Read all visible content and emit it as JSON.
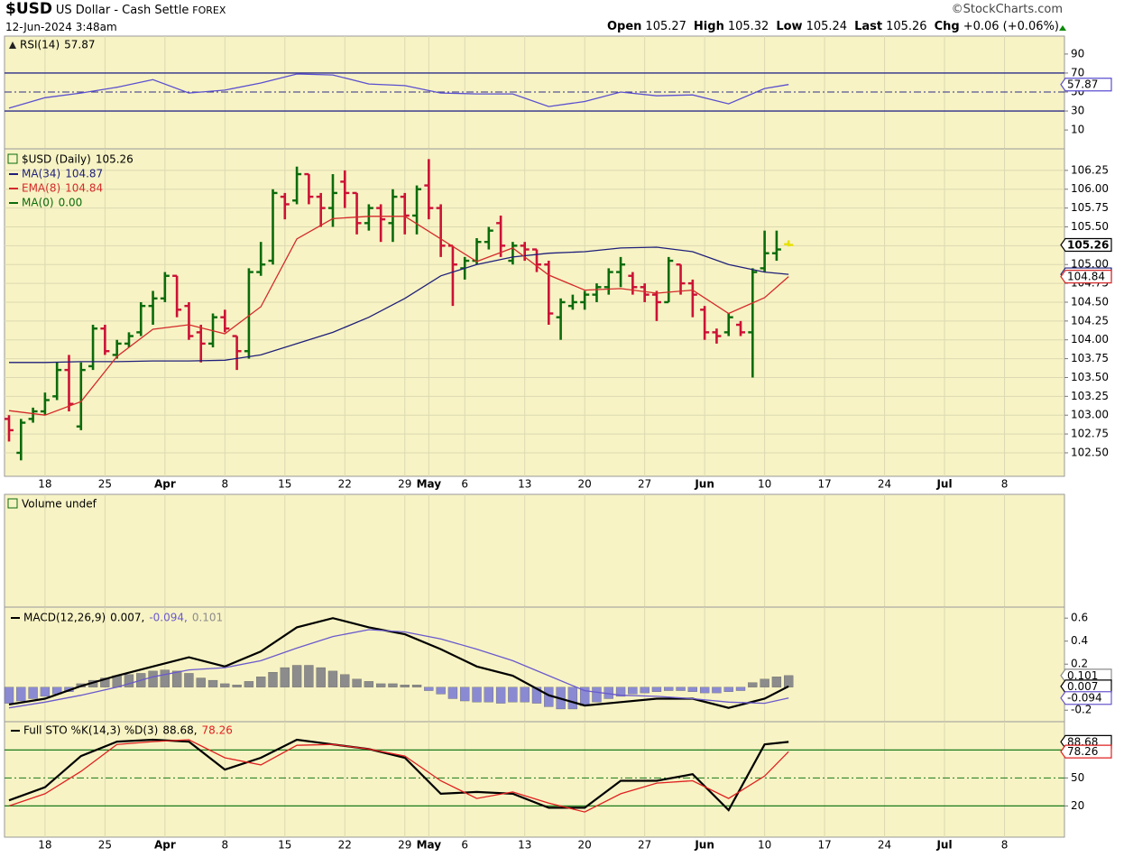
{
  "header": {
    "symbol": "$USD",
    "name": "US Dollar - Cash Settle",
    "exchange": "FOREX",
    "datetime": "12-Jun-2024 3:48am",
    "source": "©StockCharts.com",
    "quote": [
      {
        "label": "Open",
        "value": "105.27"
      },
      {
        "label": "High",
        "value": "105.32"
      },
      {
        "label": "Low",
        "value": "105.24"
      },
      {
        "label": "Last",
        "value": "105.26"
      },
      {
        "label": "Chg",
        "value": "+0.06 (+0.06%)"
      }
    ]
  },
  "chart_data": {
    "type": "stock",
    "background": "#f7f3c4",
    "xlim": [
      "2024-03-13",
      "2024-07-15"
    ],
    "xticks": [
      {
        "value": "2024-03-18",
        "label": "18"
      },
      {
        "value": "2024-03-25",
        "label": "25"
      },
      {
        "value": "2024-04-01",
        "label": "Apr"
      },
      {
        "value": "2024-04-08",
        "label": "8"
      },
      {
        "value": "2024-04-15",
        "label": "15"
      },
      {
        "value": "2024-04-22",
        "label": "22"
      },
      {
        "value": "2024-04-29",
        "label": "29"
      },
      {
        "value": "2024-05-01",
        "label": "May"
      },
      {
        "value": "2024-05-06",
        "label": "6"
      },
      {
        "value": "2024-05-13",
        "label": "13"
      },
      {
        "value": "2024-05-20",
        "label": "20"
      },
      {
        "value": "2024-05-27",
        "label": "27"
      },
      {
        "value": "2024-06-03",
        "label": "Jun"
      },
      {
        "value": "2024-06-10",
        "label": "10"
      },
      {
        "value": "2024-06-17",
        "label": "17"
      },
      {
        "value": "2024-06-24",
        "label": "24"
      },
      {
        "value": "2024-07-01",
        "label": "Jul"
      },
      {
        "value": "2024-07-08",
        "label": "8"
      }
    ],
    "x": [
      "2024-03-13",
      "2024-03-14",
      "2024-03-15",
      "2024-03-18",
      "2024-03-19",
      "2024-03-20",
      "2024-03-21",
      "2024-03-22",
      "2024-03-25",
      "2024-03-26",
      "2024-03-27",
      "2024-03-28",
      "2024-03-29",
      "2024-04-01",
      "2024-04-02",
      "2024-04-03",
      "2024-04-04",
      "2024-04-05",
      "2024-04-08",
      "2024-04-09",
      "2024-04-10",
      "2024-04-11",
      "2024-04-12",
      "2024-04-15",
      "2024-04-16",
      "2024-04-17",
      "2024-04-18",
      "2024-04-19",
      "2024-04-22",
      "2024-04-23",
      "2024-04-24",
      "2024-04-25",
      "2024-04-26",
      "2024-04-29",
      "2024-04-30",
      "2024-05-01",
      "2024-05-02",
      "2024-05-03",
      "2024-05-06",
      "2024-05-07",
      "2024-05-08",
      "2024-05-09",
      "2024-05-10",
      "2024-05-13",
      "2024-05-14",
      "2024-05-15",
      "2024-05-16",
      "2024-05-17",
      "2024-05-20",
      "2024-05-21",
      "2024-05-22",
      "2024-05-23",
      "2024-05-24",
      "2024-05-27",
      "2024-05-28",
      "2024-05-29",
      "2024-05-30",
      "2024-05-31",
      "2024-06-03",
      "2024-06-04",
      "2024-06-05",
      "2024-06-06",
      "2024-06-07",
      "2024-06-10",
      "2024-06-11",
      "2024-06-12"
    ],
    "line_x": [
      "2024-03-13",
      "2024-03-18",
      "2024-03-21",
      "2024-03-26",
      "2024-03-29",
      "2024-04-03",
      "2024-04-08",
      "2024-04-11",
      "2024-04-16",
      "2024-04-19",
      "2024-04-24",
      "2024-04-29",
      "2024-05-02",
      "2024-05-07",
      "2024-05-10",
      "2024-05-15",
      "2024-05-20",
      "2024-05-23",
      "2024-05-28",
      "2024-05-31",
      "2024-06-05",
      "2024-06-10",
      "2024-06-12"
    ],
    "rsi": {
      "title": "RSI(14)",
      "label": "57.87",
      "color": "#5a4fd0",
      "ylim": [
        -7,
        107
      ],
      "yticks": [
        10,
        30,
        50,
        70,
        90
      ],
      "bands": [
        30,
        70
      ],
      "midline": 50,
      "band_color": "#2d2d8a",
      "values": [
        33,
        44,
        49,
        55,
        63,
        49,
        52,
        59.5,
        69,
        68,
        58.5,
        56.7,
        49,
        48,
        48,
        34.7,
        40,
        50,
        46,
        47,
        37.6,
        53.7,
        57.87
      ]
    },
    "price": {
      "title": "$USD (Daily)",
      "label": "105.26",
      "ylim": [
        102.2,
        106.5
      ],
      "grid": true,
      "yticks": [
        {
          "value": 102.5,
          "label": "102.50"
        },
        {
          "value": 102.75,
          "label": "102.75"
        },
        {
          "value": 103,
          "label": "103.00"
        },
        {
          "value": 103.25,
          "label": "103.25"
        },
        {
          "value": 103.5,
          "label": "103.50"
        },
        {
          "value": 103.75,
          "label": "103.75"
        },
        {
          "value": 104,
          "label": "104.00"
        },
        {
          "value": 104.25,
          "label": "104.25"
        },
        {
          "value": 104.5,
          "label": "104.50"
        },
        {
          "value": 104.75,
          "label": "104.75"
        },
        {
          "value": 105,
          "label": "105.00"
        },
        {
          "value": 105.25,
          "label": "105.25"
        },
        {
          "value": 105.5,
          "label": "105.50"
        },
        {
          "value": 105.75,
          "label": "105.75"
        },
        {
          "value": 106,
          "label": "106.00"
        },
        {
          "value": 106.25,
          "label": "106.25"
        }
      ],
      "up_color": "#0b6b0b",
      "down_color": "#cc1136",
      "last_color": "#e6e000",
      "open": [
        102.95,
        102.5,
        102.95,
        103.05,
        103.25,
        103.6,
        102.85,
        103.65,
        104.15,
        103.8,
        103.95,
        104.1,
        104.45,
        104.55,
        104.85,
        104.45,
        104.1,
        103.95,
        104.3,
        104.05,
        103.85,
        104.9,
        105.05,
        105.9,
        105.85,
        106.2,
        105.9,
        105.75,
        106.1,
        105.95,
        105.55,
        105.75,
        105.55,
        105.9,
        105.65,
        106.05,
        105.75,
        105.25,
        104.95,
        105.05,
        105.3,
        105.55,
        105.05,
        105.25,
        105.2,
        105.0,
        104.3,
        104.45,
        104.5,
        104.6,
        104.7,
        104.9,
        104.85,
        104.7,
        104.6,
        104.5,
        105.0,
        104.75,
        104.4,
        104.1,
        104.1,
        104.2,
        104.1,
        104.95,
        105.15,
        105.27
      ],
      "high": [
        103.0,
        102.95,
        103.1,
        103.3,
        103.7,
        103.8,
        103.7,
        104.2,
        104.2,
        104.0,
        104.1,
        104.5,
        104.65,
        104.9,
        104.85,
        104.5,
        104.2,
        104.35,
        104.4,
        104.05,
        104.95,
        105.3,
        106.0,
        105.95,
        106.3,
        106.2,
        105.95,
        106.2,
        106.25,
        105.95,
        105.8,
        105.8,
        106.0,
        105.95,
        106.05,
        106.4,
        105.8,
        105.25,
        105.1,
        105.35,
        105.5,
        105.65,
        105.3,
        105.3,
        105.2,
        105.05,
        104.55,
        104.6,
        104.65,
        104.75,
        104.95,
        105.1,
        104.9,
        104.75,
        104.65,
        105.1,
        105.0,
        104.8,
        104.45,
        104.15,
        104.35,
        104.25,
        104.95,
        105.45,
        105.45,
        105.32
      ],
      "low": [
        102.65,
        102.4,
        102.9,
        103.0,
        103.2,
        103.05,
        102.8,
        103.6,
        103.8,
        103.75,
        103.9,
        104.05,
        104.2,
        104.5,
        104.3,
        104.0,
        103.7,
        103.9,
        104.1,
        103.6,
        103.75,
        104.85,
        105.0,
        105.6,
        105.8,
        105.8,
        105.5,
        105.5,
        105.75,
        105.4,
        105.45,
        105.3,
        105.3,
        105.4,
        105.4,
        105.6,
        105.1,
        104.45,
        104.8,
        105.0,
        105.2,
        105.1,
        105.0,
        105.05,
        104.9,
        104.2,
        104.0,
        104.4,
        104.4,
        104.5,
        104.6,
        104.7,
        104.6,
        104.5,
        104.25,
        104.5,
        104.6,
        104.3,
        104.0,
        103.95,
        104.05,
        104.05,
        103.5,
        104.9,
        105.05,
        105.24
      ],
      "close": [
        102.8,
        102.9,
        103.05,
        103.2,
        103.6,
        103.15,
        103.6,
        104.15,
        103.85,
        103.95,
        104.05,
        104.45,
        104.55,
        104.85,
        104.4,
        104.05,
        103.95,
        104.3,
        104.15,
        103.85,
        104.9,
        105.0,
        105.95,
        105.8,
        106.2,
        105.9,
        105.75,
        105.95,
        105.95,
        105.55,
        105.75,
        105.6,
        105.9,
        105.65,
        106.0,
        105.75,
        105.25,
        105.0,
        105.05,
        105.3,
        105.45,
        105.25,
        105.25,
        105.2,
        105.0,
        104.35,
        104.5,
        104.5,
        104.6,
        104.7,
        104.9,
        105.0,
        104.7,
        104.6,
        104.5,
        105.05,
        104.75,
        104.6,
        104.1,
        104.05,
        104.3,
        104.1,
        104.9,
        105.15,
        105.2,
        105.26
      ],
      "series": [
        {
          "name": "MA(34)",
          "label": "104.87",
          "color": "#1f1f7a",
          "values": [
            103.7,
            103.7,
            103.71,
            103.71,
            103.72,
            103.72,
            103.73,
            103.8,
            103.95,
            104.1,
            104.3,
            104.55,
            104.85,
            105.0,
            105.1,
            105.15,
            105.17,
            105.22,
            105.23,
            105.17,
            105.0,
            104.9,
            104.87
          ]
        },
        {
          "name": "EMA(8)",
          "label": "104.84",
          "color": "#d42a2a",
          "values": [
            103.06,
            103.0,
            103.18,
            103.78,
            104.14,
            104.2,
            104.08,
            104.44,
            105.34,
            105.61,
            105.64,
            105.64,
            105.34,
            105.04,
            105.22,
            104.86,
            104.66,
            104.68,
            104.62,
            104.66,
            104.35,
            104.56,
            104.84
          ]
        },
        {
          "name": "MA(0)",
          "label": "0.00",
          "color": "#0b6b0b"
        }
      ]
    },
    "volume": {
      "title": "Volume undef"
    },
    "macd": {
      "title": "MACD(12,26,9)",
      "ylim": [
        -0.3,
        0.68
      ],
      "yticks": [
        -0.2,
        0.2,
        0.4,
        0.6
      ],
      "series": [
        {
          "name": "MACD",
          "legend_label": "0.007,",
          "label": "0.007",
          "color": "#000000",
          "values": [
            -0.15,
            -0.1,
            0.01,
            0.1,
            0.18,
            0.26,
            0.18,
            0.31,
            0.52,
            0.6,
            0.52,
            0.46,
            0.33,
            0.18,
            0.1,
            -0.07,
            -0.16,
            -0.13,
            -0.1,
            -0.1,
            -0.18,
            -0.1,
            0.007
          ]
        },
        {
          "name": "Signal",
          "legend_label": "-0.094,",
          "label": "-0.094",
          "color": "#6a5acd",
          "values": [
            -0.18,
            -0.13,
            -0.07,
            0.0,
            0.09,
            0.15,
            0.17,
            0.23,
            0.34,
            0.44,
            0.5,
            0.48,
            0.42,
            0.33,
            0.23,
            0.1,
            -0.03,
            -0.07,
            -0.08,
            -0.1,
            -0.13,
            -0.14,
            -0.094
          ]
        }
      ],
      "histogram": {
        "legend_label": "0.101",
        "label": "0.101",
        "color": "#8c8c8c",
        "neg_color": "#8a8ad2",
        "values": [
          -0.14,
          -0.12,
          -0.1,
          -0.08,
          -0.06,
          -0.04,
          0.03,
          0.06,
          0.08,
          0.1,
          0.11,
          0.12,
          0.14,
          0.15,
          0.14,
          0.12,
          0.08,
          0.06,
          0.03,
          0.02,
          0.05,
          0.09,
          0.13,
          0.17,
          0.19,
          0.19,
          0.17,
          0.14,
          0.11,
          0.07,
          0.05,
          0.03,
          0.03,
          0.02,
          0.02,
          -0.03,
          -0.06,
          -0.1,
          -0.12,
          -0.13,
          -0.13,
          -0.14,
          -0.13,
          -0.13,
          -0.14,
          -0.17,
          -0.19,
          -0.19,
          -0.16,
          -0.13,
          -0.1,
          -0.08,
          -0.06,
          -0.05,
          -0.04,
          -0.03,
          -0.03,
          -0.04,
          -0.05,
          -0.05,
          -0.04,
          -0.03,
          0.04,
          0.07,
          0.09,
          0.101
        ]
      }
    },
    "sto": {
      "title": "Full STO %K(14,3) %D(3)",
      "ylim": [
        -13.5,
        105.5
      ],
      "yticks": [
        20,
        50,
        80
      ],
      "bands": [
        20,
        80
      ],
      "midline": 50,
      "band_color": "#1a7a1a",
      "series": [
        {
          "name": "%K",
          "legend_label": "88.68,",
          "label": "88.68",
          "color": "#000000",
          "values": [
            26,
            40,
            73.5,
            89,
            91,
            89,
            59,
            71.6,
            91,
            86,
            81,
            71.6,
            33,
            35,
            33,
            18,
            18,
            47,
            47,
            54,
            15.5,
            86,
            88.68
          ]
        },
        {
          "name": "%D",
          "legend_label": "78.26",
          "label": "78.26",
          "color": "#e02020",
          "values": [
            20,
            33,
            57,
            86,
            89,
            91,
            71.6,
            64,
            85,
            86,
            81,
            73.5,
            47,
            28,
            35,
            23,
            13.5,
            33,
            44.5,
            47,
            28,
            52,
            78.26
          ]
        }
      ]
    }
  }
}
